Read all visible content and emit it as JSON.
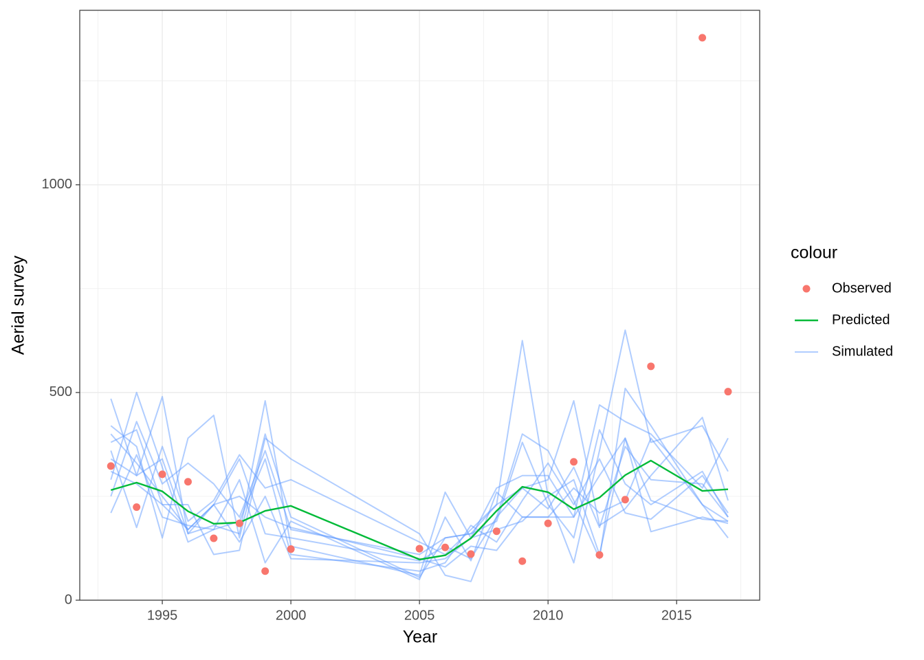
{
  "chart_data": {
    "type": "line",
    "x_label": "Year",
    "y_label": "Aerial survey",
    "legend_title": "colour",
    "legend": "right",
    "grid": true,
    "xlim": [
      1991.79,
      2018.23
    ],
    "ylim": [
      0,
      1420
    ],
    "xticks": [
      1995,
      2000,
      2005,
      2010,
      2015
    ],
    "yticks": [
      0,
      500,
      1000
    ],
    "xminor": [
      1992.5,
      1997.5,
      2002.5,
      2007.5,
      2012.5,
      2017.5
    ],
    "yminor": [
      250,
      750,
      1250
    ],
    "x": [
      1993,
      1994,
      1995,
      1996,
      1997,
      1998,
      1999,
      2000,
      2005,
      2006,
      2007,
      2008,
      2009,
      2010,
      2011,
      2012,
      2013,
      2014,
      2016,
      2017
    ],
    "series": [
      {
        "name": "Observed",
        "mode": "markers",
        "color": "#F8766D",
        "values": [
          323,
          224,
          303,
          285,
          149,
          185,
          70,
          123,
          124,
          127,
          111,
          166,
          94,
          185,
          333,
          109,
          242,
          563,
          1354,
          502
        ]
      },
      {
        "name": "Predicted",
        "mode": "lines",
        "color": "#00BA38",
        "values": [
          265,
          283,
          262,
          214,
          184,
          187,
          215,
          227,
          98,
          108,
          149,
          215,
          273,
          260,
          219,
          247,
          301,
          336,
          263,
          267
        ]
      },
      {
        "name": "Simulated",
        "mode": "lines",
        "color": "#619CFF",
        "values": [
          485,
          300,
          490,
          160,
          180,
          160,
          480,
          130,
          60,
          260,
          150,
          270,
          300,
          300,
          200,
          470,
          430,
          400,
          270,
          390
        ]
      },
      {
        "name": "Simulated",
        "mode": "lines",
        "color": "#619CFF",
        "values": [
          420,
          370,
          150,
          390,
          445,
          150,
          400,
          200,
          55,
          150,
          160,
          230,
          625,
          250,
          90,
          360,
          650,
          380,
          420,
          310
        ]
      },
      {
        "name": "Simulated",
        "mode": "lines",
        "color": "#619CFF",
        "values": [
          380,
          410,
          230,
          230,
          110,
          120,
          390,
          340,
          160,
          60,
          45,
          200,
          400,
          360,
          240,
          100,
          510,
          420,
          230,
          150
        ]
      },
      {
        "name": "Simulated",
        "mode": "lines",
        "color": "#619CFF",
        "values": [
          360,
          175,
          370,
          190,
          240,
          350,
          270,
          290,
          140,
          110,
          170,
          230,
          270,
          290,
          480,
          180,
          220,
          300,
          440,
          240
        ]
      },
      {
        "name": "Simulated",
        "mode": "lines",
        "color": "#619CFF",
        "values": [
          290,
          500,
          320,
          140,
          170,
          290,
          90,
          190,
          50,
          200,
          95,
          260,
          200,
          200,
          200,
          300,
          390,
          165,
          200,
          185
        ]
      },
      {
        "name": "Simulated",
        "mode": "lines",
        "color": "#619CFF",
        "values": [
          250,
          430,
          280,
          330,
          280,
          200,
          360,
          170,
          110,
          150,
          160,
          190,
          380,
          230,
          150,
          410,
          280,
          230,
          310,
          200
        ]
      },
      {
        "name": "Simulated",
        "mode": "lines",
        "color": "#619CFF",
        "values": [
          210,
          350,
          200,
          180,
          170,
          190,
          340,
          110,
          70,
          90,
          180,
          140,
          240,
          330,
          230,
          340,
          210,
          195,
          300,
          210
        ]
      },
      {
        "name": "Simulated",
        "mode": "lines",
        "color": "#619CFF",
        "values": [
          400,
          330,
          250,
          170,
          230,
          250,
          200,
          175,
          100,
          80,
          130,
          120,
          200,
          200,
          270,
          210,
          240,
          390,
          230,
          190
        ]
      },
      {
        "name": "Simulated",
        "mode": "lines",
        "color": "#619CFF",
        "values": [
          340,
          300,
          340,
          160,
          230,
          140,
          250,
          100,
          90,
          100,
          150,
          170,
          190,
          250,
          290,
          110,
          390,
          240,
          195,
          190
        ]
      },
      {
        "name": "Simulated",
        "mode": "lines",
        "color": "#619CFF",
        "values": [
          310,
          280,
          230,
          170,
          230,
          340,
          160,
          150,
          95,
          130,
          100,
          200,
          270,
          220,
          320,
          175,
          370,
          290,
          280,
          200
        ]
      }
    ]
  }
}
